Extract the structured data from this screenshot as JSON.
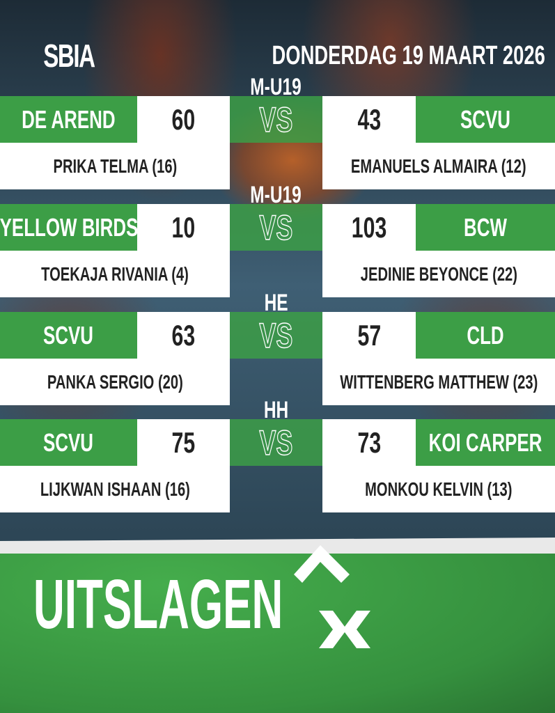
{
  "header": {
    "logo_text": "SBIA",
    "date": "DONDERDAG 19 MAART 2026"
  },
  "games": [
    {
      "category": "M-U19",
      "home": {
        "team": "DE AREND",
        "score": "60",
        "top_scorer": "PRIKA TELMA (16)"
      },
      "vs": "VS",
      "away": {
        "team": "SCVU",
        "score": "43",
        "top_scorer": "EMANUELS ALMAIRA (12)"
      }
    },
    {
      "category": "M-U19",
      "home": {
        "team": "YELLOW BIRDS",
        "score": "10",
        "top_scorer": "TOEKAJA RIVANIA (4)"
      },
      "vs": "VS",
      "away": {
        "team": "BCW",
        "score": "103",
        "top_scorer": "JEDINIE BEYONCE (22)"
      }
    },
    {
      "category": "HE",
      "home": {
        "team": "SCVU",
        "score": "63",
        "top_scorer": "PANKA SERGIO (20)"
      },
      "vs": "VS",
      "away": {
        "team": "CLD",
        "score": "57",
        "top_scorer": "WITTENBERG MATTHEW (23)"
      }
    },
    {
      "category": "HH",
      "home": {
        "team": "SCVU",
        "score": "75",
        "top_scorer": "LIJKWAN ISHAAN (16)"
      },
      "vs": "VS",
      "away": {
        "team": "KOI CARPER",
        "score": "73",
        "top_scorer": "MONKOU KELVIN (13)"
      }
    }
  ],
  "footer": {
    "title": "UITSLAGEN",
    "icon": "andreas-cross-icon"
  },
  "colors": {
    "green": "#3c9e46",
    "white": "#ffffff",
    "text_dark": "#222222"
  }
}
